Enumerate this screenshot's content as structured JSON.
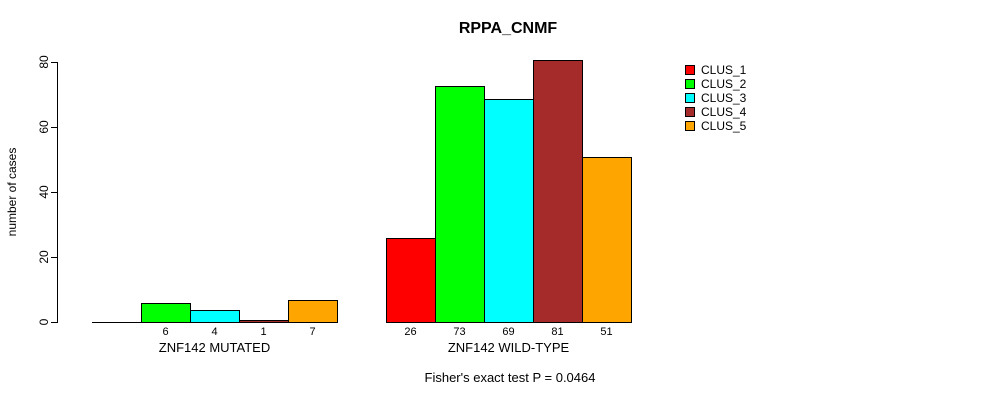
{
  "chart_data": {
    "type": "bar",
    "title": "RPPA_CNMF",
    "ylabel": "number of cases",
    "xlabel": "",
    "ylim": [
      0,
      80
    ],
    "yticks": [
      "0",
      "20",
      "40",
      "60",
      "80"
    ],
    "grid": false,
    "legend_position": "right",
    "series": [
      {
        "name": "CLUS_1",
        "color": "#FF0000"
      },
      {
        "name": "CLUS_2",
        "color": "#00FF00"
      },
      {
        "name": "CLUS_3",
        "color": "#00FFFF"
      },
      {
        "name": "CLUS_4",
        "color": "#A52A2A"
      },
      {
        "name": "CLUS_5",
        "color": "#FFA500"
      }
    ],
    "groups": [
      {
        "label": "ZNF142 MUTATED",
        "values": [
          0,
          6,
          4,
          1,
          7
        ],
        "bar_labels": [
          "",
          "6",
          "4",
          "1",
          "7"
        ]
      },
      {
        "label": "ZNF142 WILD-TYPE",
        "values": [
          26,
          73,
          69,
          81,
          51
        ],
        "bar_labels": [
          "26",
          "73",
          "69",
          "81",
          "51"
        ]
      }
    ],
    "footnote": "Fisher's exact test P = 0.0464"
  }
}
